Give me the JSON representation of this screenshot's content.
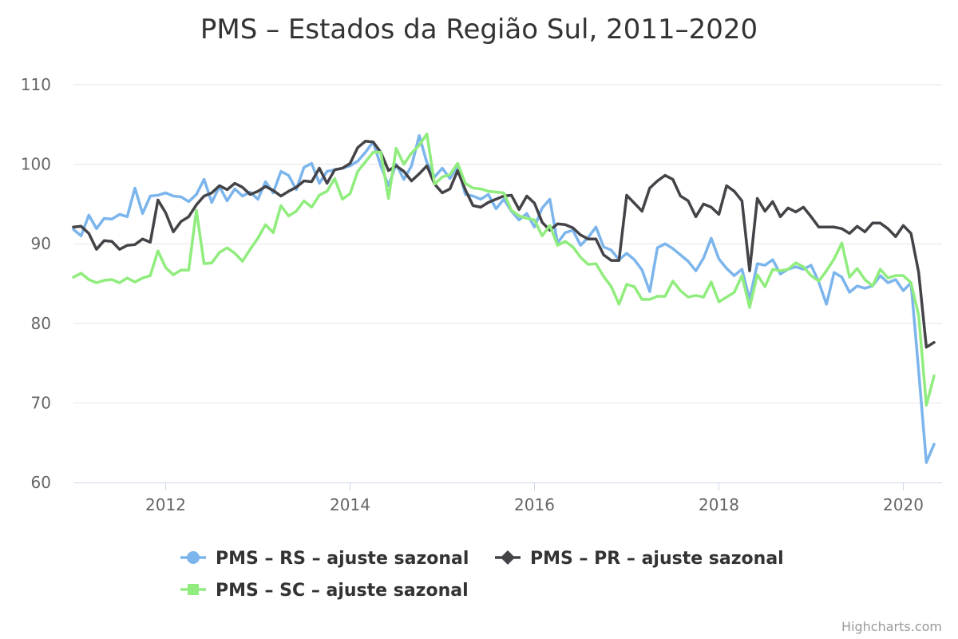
{
  "chart_data": {
    "type": "line",
    "title": "PMS – Estados da Região Sul, 2011–2020",
    "xlabel": "",
    "ylabel": "",
    "ylim": [
      60,
      110
    ],
    "yticks": [
      60,
      70,
      80,
      90,
      100,
      110
    ],
    "xlim": [
      2011.0,
      2020.42
    ],
    "xticks": [
      2012,
      2014,
      2016,
      2018,
      2020
    ],
    "x_start": "2011-01",
    "x_step": "month",
    "grid": true,
    "legend_position": "bottom-center",
    "credits": "Highcharts.com",
    "series": [
      {
        "name": "PMS – RS – ajuste sazonal",
        "color": "#7cb5ec",
        "marker": "circle",
        "values": [
          91.8,
          91.0,
          93.6,
          91.9,
          93.2,
          93.1,
          93.7,
          93.4,
          97.0,
          93.8,
          96.0,
          96.1,
          96.4,
          96.0,
          95.9,
          95.3,
          96.2,
          98.1,
          95.2,
          97.2,
          95.4,
          96.9,
          96.0,
          96.5,
          95.6,
          97.8,
          96.4,
          99.1,
          98.6,
          96.8,
          99.6,
          100.1,
          97.6,
          99.1,
          99.3,
          99.5,
          99.8,
          100.4,
          101.5,
          102.8,
          99.8,
          97.3,
          100.0,
          98.1,
          99.8,
          103.6,
          100.2,
          98.4,
          99.5,
          98.2,
          99.8,
          96.2,
          96.0,
          95.6,
          96.2,
          94.4,
          95.6,
          94.1,
          93.0,
          93.8,
          92.1,
          94.5,
          95.6,
          90.1,
          91.4,
          91.7,
          89.8,
          90.8,
          92.1,
          89.6,
          89.2,
          88.0,
          88.8,
          88.0,
          86.7,
          84.0,
          89.5,
          90.0,
          89.4,
          88.6,
          87.8,
          86.6,
          88.2,
          90.7,
          88.1,
          86.9,
          86.0,
          86.8,
          83.0,
          87.5,
          87.3,
          88.0,
          86.2,
          86.8,
          87.1,
          86.8,
          87.3,
          85.2,
          82.4,
          86.4,
          85.8,
          83.9,
          84.7,
          84.4,
          84.7,
          86.0,
          85.1,
          85.5,
          84.1,
          85.1,
          74.0,
          62.5,
          64.8
        ]
      },
      {
        "name": "PMS – PR – ajuste sazonal",
        "color": "#434348",
        "marker": "diamond",
        "values": [
          92.1,
          92.2,
          91.3,
          89.3,
          90.4,
          90.3,
          89.3,
          89.8,
          89.9,
          90.6,
          90.2,
          95.5,
          93.9,
          91.5,
          92.8,
          93.4,
          94.9,
          96.0,
          96.4,
          97.3,
          96.8,
          97.6,
          97.1,
          96.2,
          96.6,
          97.2,
          96.7,
          96.0,
          96.6,
          97.1,
          97.9,
          97.8,
          99.5,
          97.6,
          99.3,
          99.5,
          100.1,
          102.1,
          102.9,
          102.8,
          101.5,
          99.2,
          99.8,
          99.1,
          97.9,
          98.8,
          99.8,
          97.5,
          96.4,
          96.9,
          99.2,
          96.8,
          94.8,
          94.6,
          95.2,
          95.6,
          96.0,
          96.1,
          94.3,
          96.0,
          95.1,
          92.7,
          91.7,
          92.5,
          92.4,
          92.0,
          91.1,
          90.6,
          90.6,
          88.6,
          87.9,
          87.9,
          96.1,
          95.1,
          94.1,
          97.0,
          97.9,
          98.6,
          98.1,
          96.0,
          95.4,
          93.4,
          95.0,
          94.6,
          93.7,
          97.3,
          96.6,
          95.4,
          86.6,
          95.7,
          94.1,
          95.3,
          93.4,
          94.5,
          94.0,
          94.6,
          93.4,
          92.1,
          92.1,
          92.1,
          91.9,
          91.3,
          92.2,
          91.5,
          92.6,
          92.6,
          91.9,
          90.9,
          92.3,
          91.3,
          86.4,
          77.0,
          77.6
        ]
      },
      {
        "name": "PMS – SC – ajuste sazonal",
        "color": "#90ed7d",
        "marker": "square",
        "values": [
          85.8,
          86.3,
          85.5,
          85.1,
          85.4,
          85.5,
          85.1,
          85.7,
          85.2,
          85.7,
          86.0,
          89.1,
          87.0,
          86.1,
          86.7,
          86.7,
          94.2,
          87.5,
          87.6,
          88.9,
          89.5,
          88.8,
          87.8,
          89.3,
          90.7,
          92.4,
          91.4,
          94.8,
          93.5,
          94.1,
          95.4,
          94.6,
          96.1,
          96.6,
          98.2,
          95.6,
          96.3,
          99.1,
          100.3,
          101.5,
          101.5,
          95.7,
          102.0,
          100.0,
          101.4,
          102.4,
          103.8,
          97.5,
          98.4,
          98.7,
          100.1,
          97.6,
          97.0,
          96.9,
          96.6,
          96.5,
          96.4,
          94.2,
          93.5,
          93.2,
          93.0,
          91.0,
          92.3,
          89.8,
          90.3,
          89.6,
          88.3,
          87.4,
          87.5,
          85.9,
          84.6,
          82.4,
          84.9,
          84.6,
          83.0,
          83.0,
          83.4,
          83.4,
          85.3,
          84.1,
          83.3,
          83.5,
          83.3,
          85.2,
          82.7,
          83.3,
          83.9,
          86.0,
          82.0,
          86.1,
          84.6,
          86.8,
          86.6,
          86.8,
          87.6,
          87.1,
          86.0,
          85.3,
          86.6,
          88.1,
          90.1,
          85.8,
          86.9,
          85.5,
          84.7,
          86.8,
          85.7,
          86.0,
          86.0,
          85.1,
          81.0,
          69.7,
          73.4
        ]
      }
    ]
  }
}
